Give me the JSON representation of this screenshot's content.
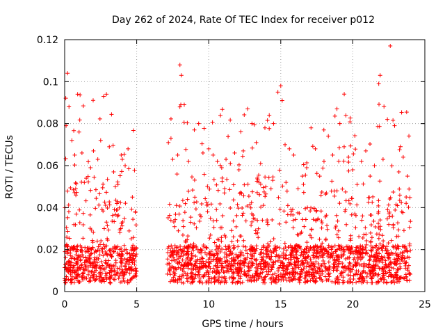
{
  "chart_data": {
    "type": "scatter",
    "title": "Day 262 of 2024, Rate Of TEC Index for receiver p012",
    "xlabel": "GPS time / hours",
    "ylabel": "ROTI / TECUs",
    "xlim": [
      0,
      25
    ],
    "ylim": [
      0,
      0.12
    ],
    "xticks": [
      "0",
      "5",
      "10",
      "15",
      "20",
      "25"
    ],
    "yticks": [
      "0",
      "0.02",
      "0.04",
      "0.06",
      "0.08",
      "0.1",
      "0.12"
    ],
    "grid": true,
    "marker": "plus",
    "color": "#ff0000",
    "data_gap_hours": [
      5.0,
      7.1
    ],
    "series": [
      {
        "x": [
          0.1,
          0.2,
          0.3,
          0.5,
          0.7,
          0.9,
          1.0,
          1.2,
          1.5,
          1.8,
          2.0,
          2.3,
          2.5,
          2.7,
          2.9,
          3.1,
          3.4,
          3.7,
          4.0,
          4.2,
          4.4,
          4.7,
          4.9,
          7.2,
          7.5,
          7.8,
          8.0,
          8.1,
          8.3,
          8.6,
          9.0,
          9.3,
          9.6,
          10.0,
          10.3,
          10.6,
          10.9,
          11.2,
          11.5,
          11.8,
          12.1,
          12.4,
          12.7,
          13.0,
          13.3,
          13.6,
          13.9,
          14.2,
          14.5,
          14.8,
          15.0,
          15.1,
          15.3,
          15.6,
          15.9,
          16.2,
          16.5,
          16.8,
          17.1,
          17.4,
          17.7,
          18.0,
          18.3,
          18.6,
          18.9,
          19.1,
          19.4,
          19.7,
          20.0,
          20.3,
          20.6,
          20.9,
          21.2,
          21.5,
          21.8,
          21.9,
          22.1,
          22.4,
          22.6,
          22.9,
          23.2,
          23.5,
          23.8
        ],
        "y": [
          0.079,
          0.104,
          0.088,
          0.072,
          0.065,
          0.094,
          0.076,
          0.066,
          0.054,
          0.059,
          0.067,
          0.063,
          0.072,
          0.093,
          0.094,
          0.069,
          0.057,
          0.051,
          0.063,
          0.06,
          0.068,
          0.045,
          0.038,
          0.071,
          0.063,
          0.056,
          0.108,
          0.103,
          0.089,
          0.062,
          0.077,
          0.08,
          0.066,
          0.068,
          0.065,
          0.062,
          0.059,
          0.063,
          0.061,
          0.066,
          0.058,
          0.067,
          0.087,
          0.08,
          0.071,
          0.061,
          0.078,
          0.084,
          0.08,
          0.095,
          0.098,
          0.091,
          0.07,
          0.068,
          0.065,
          0.049,
          0.055,
          0.059,
          0.078,
          0.068,
          0.055,
          0.062,
          0.074,
          0.065,
          0.087,
          0.08,
          0.069,
          0.064,
          0.058,
          0.051,
          0.062,
          0.067,
          0.055,
          0.06,
          0.099,
          0.103,
          0.063,
          0.082,
          0.117,
          0.079,
          0.057,
          0.064,
          0.055
        ]
      }
    ]
  }
}
